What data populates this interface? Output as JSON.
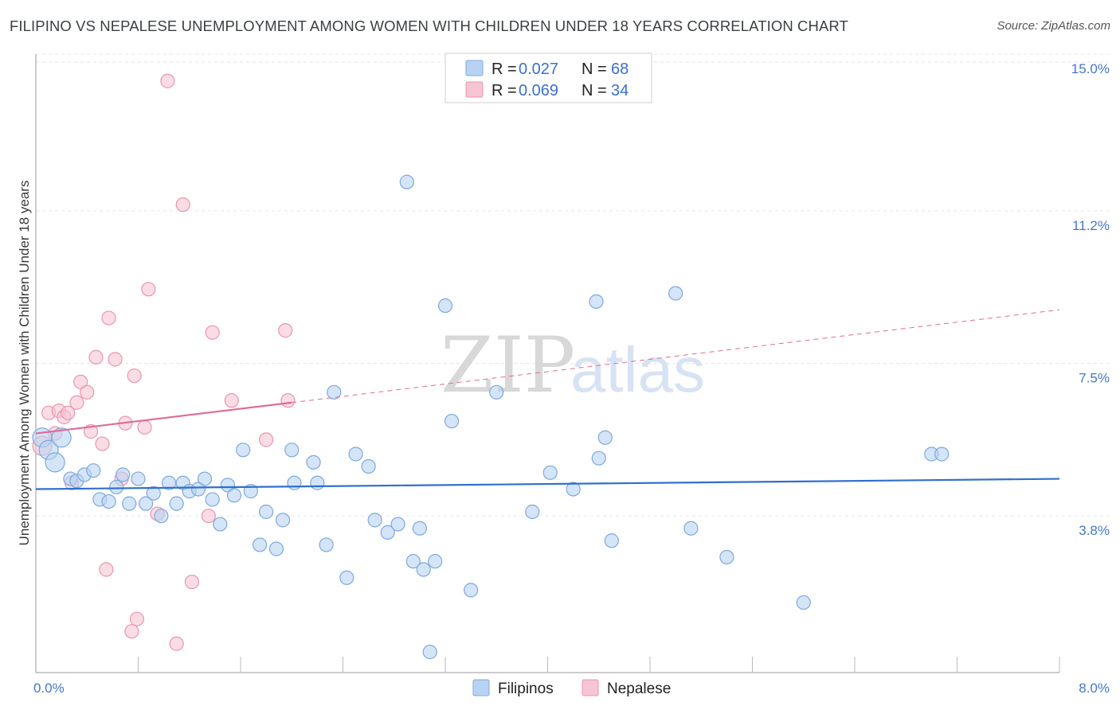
{
  "title": "FILIPINO VS NEPALESE UNEMPLOYMENT AMONG WOMEN WITH CHILDREN UNDER 18 YEARS CORRELATION CHART",
  "source": "Source: ZipAtlas.com",
  "watermark": {
    "zip": "ZIP",
    "atlas": "atlas"
  },
  "legend": {
    "series": [
      {
        "r_label": "R = ",
        "r_value": "0.027",
        "n_label": "N = ",
        "n_value": "68"
      },
      {
        "r_label": "R = ",
        "r_value": "0.069",
        "n_label": "N = ",
        "n_value": "34"
      }
    ]
  },
  "colors": {
    "blue_fill": "#b8d3f2",
    "blue_stroke": "#7ea8dd",
    "blue_line": "#2f6fce",
    "pink_fill": "#f7c4d3",
    "pink_stroke": "#e996b0",
    "pink_line": "#e06a94",
    "grid": "#e6e6e6",
    "tick": "#4477cc"
  },
  "chart_data": {
    "type": "scatter",
    "title": "FILIPINO VS NEPALESE UNEMPLOYMENT AMONG WOMEN WITH CHILDREN UNDER 18 YEARS CORRELATION CHART",
    "xlabel": "",
    "ylabel": "Unemployment Among Women with Children Under 18 years",
    "xlim": [
      0,
      8.0
    ],
    "ylim": [
      0.0,
      15.6
    ],
    "x_tick_labels": {
      "min": "0.0%",
      "max": "8.0%"
    },
    "y_ticks": [
      {
        "value": 3.8,
        "label": "3.8%"
      },
      {
        "value": 7.5,
        "label": "7.5%"
      },
      {
        "value": 11.2,
        "label": "11.2%"
      },
      {
        "value": 15.0,
        "label": "15.0%"
      }
    ],
    "series": [
      {
        "name": "Filipinos",
        "color": "#b8d3f2",
        "trend": {
          "x": [
            0.0,
            8.0
          ],
          "y": [
            4.45,
            4.7
          ]
        },
        "points": [
          {
            "x": 0.05,
            "y": 5.7,
            "big": true
          },
          {
            "x": 0.1,
            "y": 5.4,
            "big": true
          },
          {
            "x": 0.15,
            "y": 5.1,
            "big": true
          },
          {
            "x": 0.2,
            "y": 5.7,
            "big": true
          },
          {
            "x": 0.27,
            "y": 4.7
          },
          {
            "x": 0.32,
            "y": 4.65
          },
          {
            "x": 0.38,
            "y": 4.8
          },
          {
            "x": 0.45,
            "y": 4.9
          },
          {
            "x": 0.5,
            "y": 4.2
          },
          {
            "x": 0.57,
            "y": 4.15
          },
          {
            "x": 0.63,
            "y": 4.5
          },
          {
            "x": 0.68,
            "y": 4.8
          },
          {
            "x": 0.73,
            "y": 4.1
          },
          {
            "x": 0.8,
            "y": 4.7
          },
          {
            "x": 0.86,
            "y": 4.1
          },
          {
            "x": 0.92,
            "y": 4.35
          },
          {
            "x": 0.98,
            "y": 3.8
          },
          {
            "x": 1.04,
            "y": 4.6
          },
          {
            "x": 1.1,
            "y": 4.1
          },
          {
            "x": 1.15,
            "y": 4.6
          },
          {
            "x": 1.2,
            "y": 4.4
          },
          {
            "x": 1.27,
            "y": 4.45
          },
          {
            "x": 1.32,
            "y": 4.7
          },
          {
            "x": 1.38,
            "y": 4.2
          },
          {
            "x": 1.44,
            "y": 3.6
          },
          {
            "x": 1.5,
            "y": 4.55
          },
          {
            "x": 1.55,
            "y": 4.3
          },
          {
            "x": 1.62,
            "y": 5.4
          },
          {
            "x": 1.68,
            "y": 4.4
          },
          {
            "x": 1.75,
            "y": 3.1
          },
          {
            "x": 1.8,
            "y": 3.9
          },
          {
            "x": 1.88,
            "y": 3.0
          },
          {
            "x": 1.93,
            "y": 3.7
          },
          {
            "x": 2.0,
            "y": 5.4
          },
          {
            "x": 2.02,
            "y": 4.6
          },
          {
            "x": 2.17,
            "y": 5.1
          },
          {
            "x": 2.2,
            "y": 4.6
          },
          {
            "x": 2.27,
            "y": 3.1
          },
          {
            "x": 2.33,
            "y": 6.8
          },
          {
            "x": 2.43,
            "y": 2.3
          },
          {
            "x": 2.5,
            "y": 5.3
          },
          {
            "x": 2.6,
            "y": 5.0
          },
          {
            "x": 2.65,
            "y": 3.7
          },
          {
            "x": 2.75,
            "y": 3.4
          },
          {
            "x": 2.83,
            "y": 3.6
          },
          {
            "x": 2.9,
            "y": 11.9
          },
          {
            "x": 2.95,
            "y": 2.7
          },
          {
            "x": 3.03,
            "y": 2.5
          },
          {
            "x": 3.0,
            "y": 3.5
          },
          {
            "x": 3.08,
            "y": 0.5
          },
          {
            "x": 3.12,
            "y": 2.7
          },
          {
            "x": 3.2,
            "y": 8.9
          },
          {
            "x": 3.25,
            "y": 6.1
          },
          {
            "x": 3.4,
            "y": 2.0
          },
          {
            "x": 3.6,
            "y": 6.8
          },
          {
            "x": 3.88,
            "y": 3.9
          },
          {
            "x": 4.02,
            "y": 4.85
          },
          {
            "x": 4.2,
            "y": 4.45
          },
          {
            "x": 4.38,
            "y": 9.0
          },
          {
            "x": 4.4,
            "y": 5.2
          },
          {
            "x": 4.45,
            "y": 5.7
          },
          {
            "x": 4.5,
            "y": 3.2
          },
          {
            "x": 5.0,
            "y": 9.2
          },
          {
            "x": 5.12,
            "y": 3.5
          },
          {
            "x": 5.4,
            "y": 2.8
          },
          {
            "x": 6.0,
            "y": 1.7
          },
          {
            "x": 7.0,
            "y": 5.3
          },
          {
            "x": 7.08,
            "y": 5.3
          }
        ]
      },
      {
        "name": "Nepalese",
        "color": "#f7c4d3",
        "trend": {
          "x": [
            0.0,
            2.0
          ],
          "y": [
            5.8,
            6.55
          ]
        },
        "trend_ext": {
          "x": [
            2.0,
            8.0
          ],
          "y": [
            6.55,
            8.8
          ]
        },
        "points": [
          {
            "x": 0.05,
            "y": 5.5,
            "big": true
          },
          {
            "x": 0.1,
            "y": 6.3
          },
          {
            "x": 0.15,
            "y": 5.8
          },
          {
            "x": 0.18,
            "y": 6.35
          },
          {
            "x": 0.22,
            "y": 6.2
          },
          {
            "x": 0.25,
            "y": 6.3
          },
          {
            "x": 0.28,
            "y": 4.6
          },
          {
            "x": 0.32,
            "y": 6.55
          },
          {
            "x": 0.35,
            "y": 7.05
          },
          {
            "x": 0.4,
            "y": 6.8
          },
          {
            "x": 0.43,
            "y": 5.85
          },
          {
            "x": 0.47,
            "y": 7.65
          },
          {
            "x": 0.52,
            "y": 5.55
          },
          {
            "x": 0.55,
            "y": 2.5
          },
          {
            "x": 0.57,
            "y": 8.6
          },
          {
            "x": 0.62,
            "y": 7.6
          },
          {
            "x": 0.67,
            "y": 4.7
          },
          {
            "x": 0.7,
            "y": 6.05
          },
          {
            "x": 0.75,
            "y": 1.0
          },
          {
            "x": 0.77,
            "y": 7.2
          },
          {
            "x": 0.79,
            "y": 1.3
          },
          {
            "x": 0.85,
            "y": 5.95
          },
          {
            "x": 0.88,
            "y": 9.3
          },
          {
            "x": 0.95,
            "y": 3.85
          },
          {
            "x": 1.03,
            "y": 14.35
          },
          {
            "x": 1.1,
            "y": 0.7
          },
          {
            "x": 1.15,
            "y": 11.35
          },
          {
            "x": 1.22,
            "y": 2.2
          },
          {
            "x": 1.35,
            "y": 3.8
          },
          {
            "x": 1.38,
            "y": 8.25
          },
          {
            "x": 1.53,
            "y": 6.6
          },
          {
            "x": 1.8,
            "y": 5.65
          },
          {
            "x": 1.95,
            "y": 8.3
          },
          {
            "x": 1.97,
            "y": 6.6
          }
        ]
      }
    ]
  },
  "bottom_legend": [
    {
      "label": "Filipinos"
    },
    {
      "label": "Nepalese"
    }
  ]
}
